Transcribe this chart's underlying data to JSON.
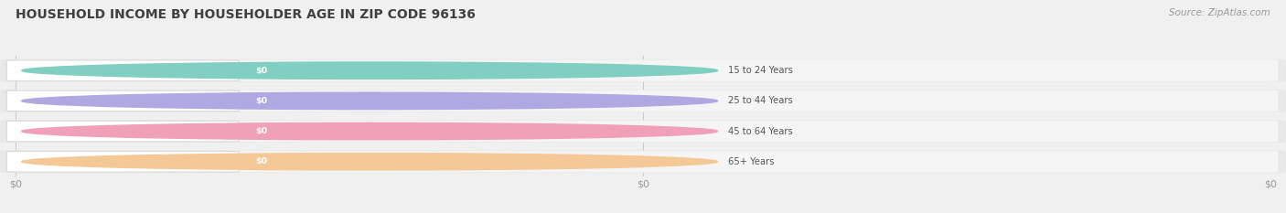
{
  "title": "HOUSEHOLD INCOME BY HOUSEHOLDER AGE IN ZIP CODE 96136",
  "source": "Source: ZipAtlas.com",
  "categories": [
    "15 to 24 Years",
    "25 to 44 Years",
    "45 to 64 Years",
    "65+ Years"
  ],
  "values": [
    0,
    0,
    0,
    0
  ],
  "bar_colors": [
    "#80cfc0",
    "#b0a8e0",
    "#f0a0b8",
    "#f5c898"
  ],
  "bg_color": "#f0f0f0",
  "row_bg_light": "#f7f7f7",
  "row_bg_dark": "#ececec",
  "title_fontsize": 10,
  "source_fontsize": 7.5,
  "xtick_labels": [
    "$0",
    "$0",
    "$0"
  ]
}
